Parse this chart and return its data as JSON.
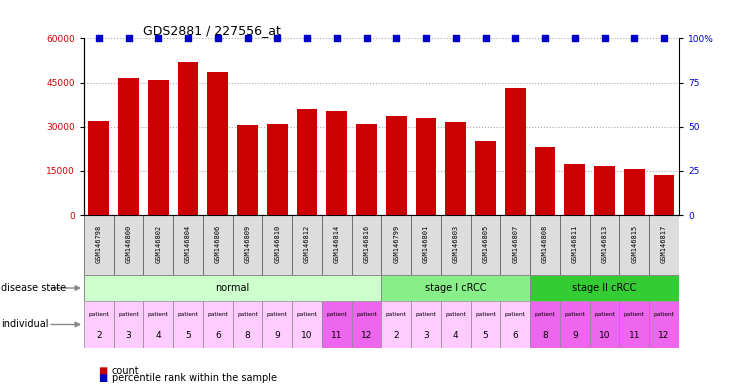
{
  "title": "GDS2881 / 227556_at",
  "samples": [
    "GSM146798",
    "GSM146800",
    "GSM146802",
    "GSM146804",
    "GSM146806",
    "GSM146809",
    "GSM146810",
    "GSM146812",
    "GSM146814",
    "GSM146816",
    "GSM146799",
    "GSM146801",
    "GSM146803",
    "GSM146805",
    "GSM146807",
    "GSM146808",
    "GSM146811",
    "GSM146813",
    "GSM146815",
    "GSM146817"
  ],
  "counts": [
    32000,
    46500,
    46000,
    52000,
    48500,
    30500,
    31000,
    36000,
    35500,
    31000,
    33500,
    33000,
    31500,
    25000,
    43000,
    23000,
    17500,
    16500,
    15500,
    13500
  ],
  "percentiles": [
    100,
    100,
    100,
    100,
    100,
    100,
    100,
    100,
    100,
    100,
    100,
    100,
    100,
    100,
    100,
    100,
    100,
    100,
    100,
    100
  ],
  "bar_color": "#cc0000",
  "percentile_color": "#0000cc",
  "ylim": [
    0,
    60000
  ],
  "yticks": [
    0,
    15000,
    30000,
    45000,
    60000
  ],
  "y2lim": [
    0,
    100
  ],
  "y2ticks": [
    0,
    25,
    50,
    75,
    100
  ],
  "disease_groups": [
    {
      "label": "normal",
      "start": 0,
      "end": 10,
      "color": "#ccffcc",
      "border": "#888888"
    },
    {
      "label": "stage I cRCC",
      "start": 10,
      "end": 15,
      "color": "#88ee88",
      "border": "#888888"
    },
    {
      "label": "stage II cRCC",
      "start": 15,
      "end": 20,
      "color": "#33cc33",
      "border": "#888888"
    }
  ],
  "individual_numbers": [
    2,
    3,
    4,
    5,
    6,
    8,
    9,
    10,
    11,
    12,
    2,
    3,
    4,
    5,
    6,
    8,
    9,
    10,
    11,
    12
  ],
  "individual_colors": [
    "#ffccff",
    "#ffccff",
    "#ffccff",
    "#ffccff",
    "#ffccff",
    "#ffccff",
    "#ffccff",
    "#ffccff",
    "#ee66ee",
    "#ee66ee",
    "#ffccff",
    "#ffccff",
    "#ffccff",
    "#ffccff",
    "#ffccff",
    "#ee66ee",
    "#ee66ee",
    "#ee66ee",
    "#ee66ee",
    "#ee66ee"
  ],
  "gsm_box_color": "#dddddd",
  "background_color": "#ffffff",
  "grid_color": "#888888",
  "label_fontsize": 7,
  "tick_fontsize": 6.5,
  "title_fontsize": 9
}
